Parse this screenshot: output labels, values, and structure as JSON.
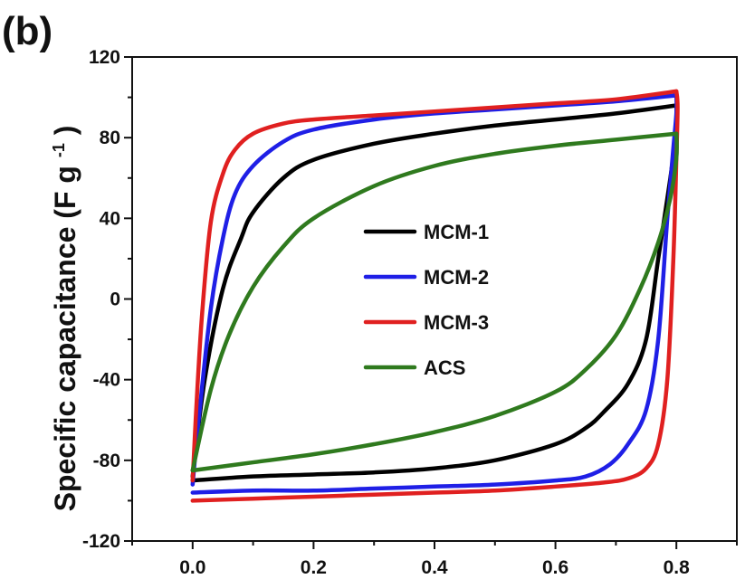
{
  "panel_label": "(b)",
  "chart_data": {
    "type": "line",
    "title": "",
    "xlabel": "",
    "ylabel": "Specific capacitance (F g",
    "ylabel_sup": "-1",
    "ylabel_close": ")",
    "xlim": [
      -0.1,
      0.9
    ],
    "ylim": [
      -120,
      120
    ],
    "xticks": [
      0.0,
      0.2,
      0.4,
      0.6,
      0.8
    ],
    "xtick_labels": [
      "0.0",
      "0.2",
      "0.4",
      "0.6",
      "0.8"
    ],
    "yticks": [
      -120,
      -80,
      -40,
      0,
      40,
      80,
      120
    ],
    "ytick_labels": [
      "-120",
      "-80",
      "-40",
      "0",
      "40",
      "80",
      "120"
    ],
    "grid": false,
    "legend_position": "center",
    "series": [
      {
        "name": "MCM-1",
        "color": "#000000",
        "upper": [
          [
            0.0,
            -88
          ],
          [
            0.02,
            -40
          ],
          [
            0.05,
            5
          ],
          [
            0.08,
            30
          ],
          [
            0.1,
            43
          ],
          [
            0.15,
            60
          ],
          [
            0.2,
            69
          ],
          [
            0.3,
            77
          ],
          [
            0.4,
            82
          ],
          [
            0.5,
            86
          ],
          [
            0.6,
            89
          ],
          [
            0.7,
            92
          ],
          [
            0.8,
            96
          ]
        ],
        "lower": [
          [
            0.8,
            96
          ],
          [
            0.8,
            85
          ],
          [
            0.79,
            60
          ],
          [
            0.77,
            20
          ],
          [
            0.75,
            -20
          ],
          [
            0.72,
            -42
          ],
          [
            0.68,
            -56
          ],
          [
            0.65,
            -64
          ],
          [
            0.6,
            -72
          ],
          [
            0.5,
            -80
          ],
          [
            0.4,
            -84
          ],
          [
            0.3,
            -86
          ],
          [
            0.2,
            -87
          ],
          [
            0.1,
            -88
          ],
          [
            0.0,
            -90
          ]
        ]
      },
      {
        "name": "MCM-2",
        "color": "#1f1fe6",
        "upper": [
          [
            0.0,
            -92
          ],
          [
            0.01,
            -60
          ],
          [
            0.03,
            -5
          ],
          [
            0.05,
            30
          ],
          [
            0.07,
            52
          ],
          [
            0.1,
            66
          ],
          [
            0.15,
            78
          ],
          [
            0.2,
            84
          ],
          [
            0.3,
            89
          ],
          [
            0.4,
            92
          ],
          [
            0.5,
            94
          ],
          [
            0.6,
            96
          ],
          [
            0.7,
            98
          ],
          [
            0.8,
            101
          ]
        ],
        "lower": [
          [
            0.8,
            101
          ],
          [
            0.8,
            92
          ],
          [
            0.795,
            75
          ],
          [
            0.785,
            40
          ],
          [
            0.77,
            -20
          ],
          [
            0.75,
            -55
          ],
          [
            0.72,
            -72
          ],
          [
            0.69,
            -82
          ],
          [
            0.65,
            -88
          ],
          [
            0.6,
            -90
          ],
          [
            0.5,
            -92
          ],
          [
            0.4,
            -93
          ],
          [
            0.3,
            -94
          ],
          [
            0.2,
            -95
          ],
          [
            0.1,
            -95
          ],
          [
            0.0,
            -96
          ]
        ]
      },
      {
        "name": "MCM-3",
        "color": "#e02020",
        "upper": [
          [
            0.0,
            -90
          ],
          [
            0.005,
            -60
          ],
          [
            0.015,
            -10
          ],
          [
            0.03,
            38
          ],
          [
            0.05,
            62
          ],
          [
            0.07,
            74
          ],
          [
            0.1,
            82
          ],
          [
            0.15,
            87
          ],
          [
            0.2,
            89
          ],
          [
            0.3,
            91
          ],
          [
            0.4,
            93
          ],
          [
            0.5,
            95
          ],
          [
            0.6,
            97
          ],
          [
            0.7,
            99
          ],
          [
            0.8,
            103
          ]
        ],
        "lower": [
          [
            0.8,
            103
          ],
          [
            0.802,
            95
          ],
          [
            0.8,
            70
          ],
          [
            0.795,
            20
          ],
          [
            0.785,
            -40
          ],
          [
            0.77,
            -72
          ],
          [
            0.75,
            -84
          ],
          [
            0.72,
            -89
          ],
          [
            0.68,
            -91
          ],
          [
            0.6,
            -93
          ],
          [
            0.5,
            -95
          ],
          [
            0.4,
            -96
          ],
          [
            0.3,
            -97
          ],
          [
            0.2,
            -98
          ],
          [
            0.1,
            -99
          ],
          [
            0.0,
            -100
          ]
        ]
      },
      {
        "name": "ACS",
        "color": "#2f7a1e",
        "upper": [
          [
            0.0,
            -85
          ],
          [
            0.03,
            -45
          ],
          [
            0.06,
            -18
          ],
          [
            0.1,
            6
          ],
          [
            0.15,
            26
          ],
          [
            0.2,
            40
          ],
          [
            0.3,
            56
          ],
          [
            0.4,
            66
          ],
          [
            0.5,
            72
          ],
          [
            0.6,
            76
          ],
          [
            0.7,
            79
          ],
          [
            0.8,
            82
          ]
        ],
        "lower": [
          [
            0.8,
            82
          ],
          [
            0.8,
            70
          ],
          [
            0.79,
            50
          ],
          [
            0.77,
            28
          ],
          [
            0.74,
            5
          ],
          [
            0.7,
            -18
          ],
          [
            0.65,
            -35
          ],
          [
            0.6,
            -46
          ],
          [
            0.5,
            -58
          ],
          [
            0.4,
            -66
          ],
          [
            0.3,
            -72
          ],
          [
            0.2,
            -77
          ],
          [
            0.1,
            -81
          ],
          [
            0.0,
            -85
          ]
        ]
      }
    ]
  }
}
